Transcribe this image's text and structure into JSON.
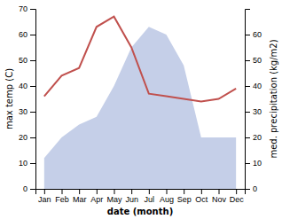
{
  "chart_data": {
    "type": "line",
    "categories": [
      "Jan",
      "Feb",
      "Mar",
      "Apr",
      "May",
      "Jun",
      "Jul",
      "Aug",
      "Sep",
      "Oct",
      "Nov",
      "Dec"
    ],
    "series": [
      {
        "type": "area",
        "axis": "y2",
        "color": "#c5cfe8",
        "values": [
          12,
          20,
          25,
          28,
          40,
          55,
          63,
          60,
          48,
          20,
          20,
          20
        ]
      },
      {
        "type": "line",
        "color": "#c0504d",
        "values": [
          36,
          44,
          47,
          63,
          67,
          55,
          37,
          36,
          35,
          34,
          35,
          39
        ]
      }
    ],
    "xlabel": "date (month)",
    "ylabel": "max temp (C)",
    "y2label": "med. precipitation (kg/m2)",
    "ylim": [
      0,
      70
    ],
    "yticks": [
      0,
      10,
      20,
      30,
      40,
      50,
      60,
      70
    ],
    "y2lim": [
      0,
      70
    ],
    "y2ticks": [
      0,
      10,
      20,
      30,
      40,
      50,
      60
    ],
    "grid": false
  }
}
